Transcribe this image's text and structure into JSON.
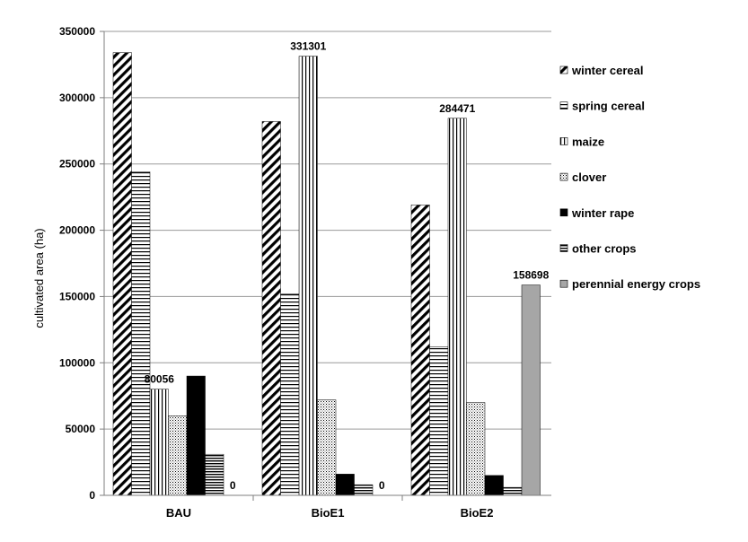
{
  "chart_data": {
    "type": "bar",
    "ylabel": "cultivated area (ha)",
    "xlabel": "",
    "ylim": [
      0,
      350000
    ],
    "yticks": [
      0,
      50000,
      100000,
      150000,
      200000,
      250000,
      300000,
      350000
    ],
    "ytick_labels": [
      "0",
      "50000",
      "100000",
      "150000",
      "200000",
      "250000",
      "300000",
      "350000"
    ],
    "grid": true,
    "legend_position": "right",
    "categories": [
      "BAU",
      "BioE1",
      "BioE2"
    ],
    "series": [
      {
        "name": "winter cereal",
        "pattern": "diagonal-hatch",
        "values": [
          334000,
          282000,
          219000
        ]
      },
      {
        "name": "spring cereal",
        "pattern": "horizontal-lines",
        "values": [
          244000,
          152000,
          112000
        ]
      },
      {
        "name": "maize",
        "pattern": "vertical-lines",
        "values": [
          80056,
          331301,
          284471
        ]
      },
      {
        "name": "clover",
        "pattern": "dotted",
        "values": [
          60000,
          72000,
          70000
        ]
      },
      {
        "name": "winter rape",
        "pattern": "solid-black",
        "values": [
          90000,
          16000,
          15000
        ]
      },
      {
        "name": "other crops",
        "pattern": "dense-horizontal-lines",
        "values": [
          31000,
          8000,
          6000
        ]
      },
      {
        "name": "perennial energy crops",
        "pattern": "solid-gray",
        "values": [
          0,
          0,
          158698
        ]
      }
    ],
    "data_labels": [
      {
        "category": "BAU",
        "series": "maize",
        "text": "80056"
      },
      {
        "category": "BAU",
        "series": "perennial energy crops",
        "text": "0"
      },
      {
        "category": "BioE1",
        "series": "maize",
        "text": "331301"
      },
      {
        "category": "BioE1",
        "series": "perennial energy crops",
        "text": "0"
      },
      {
        "category": "BioE2",
        "series": "maize",
        "text": "284471"
      },
      {
        "category": "BioE2",
        "series": "perennial energy crops",
        "text": "158698"
      }
    ],
    "colors": {
      "gridline": "#9a9a9a",
      "axis": "#7f7f7f",
      "gray_fill": "#a6a6a6",
      "black_fill": "#000000"
    }
  }
}
